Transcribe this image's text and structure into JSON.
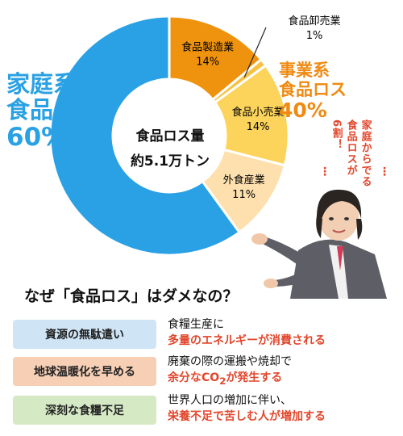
{
  "chart_data": {
    "type": "pie",
    "center_label": [
      "食品ロス量",
      "約5.1万トン"
    ],
    "groups": [
      {
        "name": "家庭系食品ロス",
        "lines": [
          "家庭系",
          "食品ロス"
        ],
        "percent_label": "60%",
        "value": 60,
        "color": "#2aa1e4"
      },
      {
        "name": "事業系食品ロス",
        "lines": [
          "事業系",
          "食品ロス"
        ],
        "percent_label": "40%",
        "value": 40,
        "color": "#ef8a12"
      }
    ],
    "slices": [
      {
        "name": "食品製造業",
        "value": 14,
        "label": "14%",
        "color": "#ef930f"
      },
      {
        "name": "食品卸売業",
        "value": 1,
        "label": "1%",
        "color": "#f6c244"
      },
      {
        "name": "食品小売業",
        "value": 14,
        "label": "14%",
        "color": "#fcd45b"
      },
      {
        "name": "外食産業",
        "value": 11,
        "label": "11%",
        "color": "#fde0ae"
      },
      {
        "name": "家庭系食品ロス",
        "value": 60,
        "label": "60%",
        "color": "#2aa1e4"
      }
    ]
  },
  "speech": {
    "line1": "家庭からでる",
    "line2": "食品ロスが",
    "line3": "6割！"
  },
  "question": "なぜ「食品ロス」はダメなの？",
  "reasons": [
    {
      "label": "資源の無駄遣い",
      "line1": "食糧生産に",
      "line2": "多量のエネルギーが消費される"
    },
    {
      "label": "地球温暖化を早める",
      "line1": "廃棄の際の運搬や焼却で",
      "line2_a": "余分なCO",
      "line2_sub": "2",
      "line2_b": "が発生する"
    },
    {
      "label": "深刻な食糧不足",
      "line1": "世界人口の増加に伴い、",
      "line2": "栄養不足で苦しむ人が増加する"
    }
  ],
  "colors": {
    "household": "#2aa1e4",
    "business": "#ef8a12",
    "emphasis": "#e2462c"
  }
}
